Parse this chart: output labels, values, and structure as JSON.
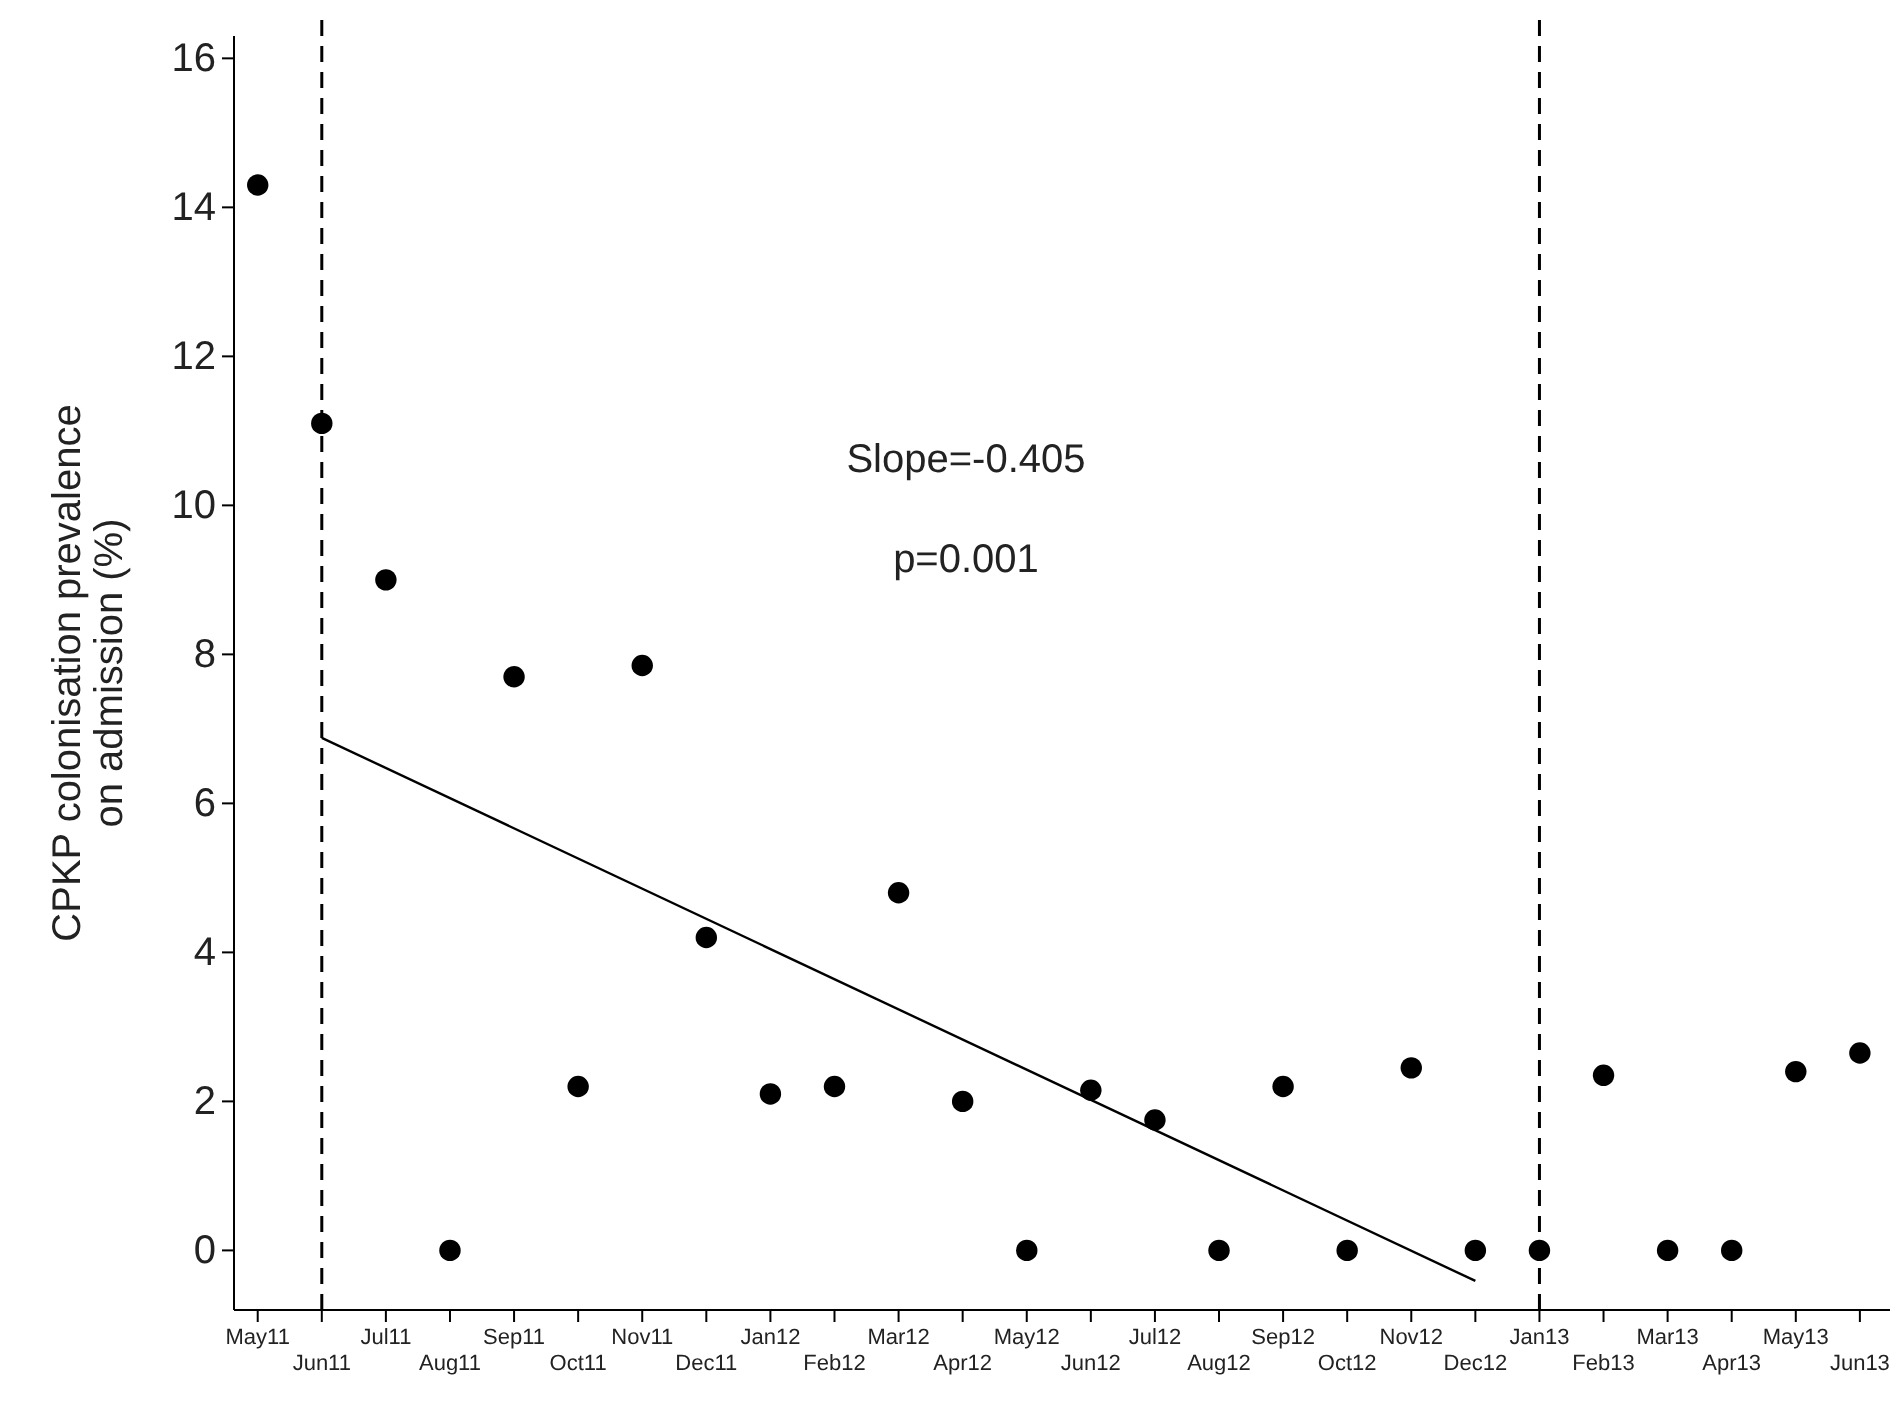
{
  "chart_data": {
    "type": "scatter",
    "ylabel": "CPKP colonisation prevalence\non admission (%)",
    "categories": [
      "May11",
      "Jun11",
      "Jul11",
      "Aug11",
      "Sep11",
      "Oct11",
      "Nov11",
      "Dec11",
      "Jan12",
      "Feb12",
      "Mar12",
      "Apr12",
      "May12",
      "Jun12",
      "Jul12",
      "Aug12",
      "Sep12",
      "Oct12",
      "Nov12",
      "Dec12",
      "Jan13",
      "Feb13",
      "Mar13",
      "Apr13",
      "May13",
      "Jun13"
    ],
    "series": [
      {
        "marker": "circle",
        "color": "#000000",
        "values": [
          14.3,
          11.1,
          9.0,
          0,
          7.7,
          2.2,
          7.85,
          4.2,
          2.1,
          2.2,
          4.8,
          2.0,
          0,
          2.15,
          1.75,
          0,
          2.2,
          0,
          2.45,
          0,
          0,
          2.35,
          0,
          0,
          2.4,
          2.65
        ]
      },
      {
        "type": "line",
        "marker": "none",
        "color": "#000000",
        "values": [
          null,
          6.88,
          null,
          null,
          null,
          null,
          null,
          null,
          null,
          null,
          null,
          null,
          null,
          null,
          null,
          null,
          null,
          null,
          null,
          -0.41,
          null,
          null,
          null,
          null,
          null,
          null
        ]
      }
    ],
    "ylim": [
      -0.8,
      16.3
    ],
    "yticks": [
      0,
      2,
      4,
      6,
      8,
      10,
      12,
      14,
      16
    ],
    "ref_lines": [
      {
        "axis": "x",
        "value": "Jun11",
        "line_style": "dashed"
      },
      {
        "axis": "x",
        "value": "Jan13",
        "line_style": "dashed"
      }
    ],
    "annotations": [
      "Slope=-0.405",
      "p=0.001"
    ]
  }
}
